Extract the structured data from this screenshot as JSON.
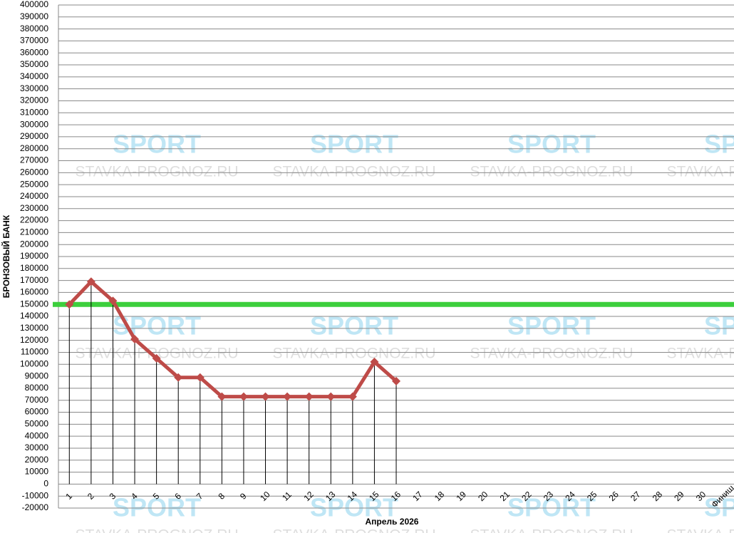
{
  "chart_data": {
    "type": "line",
    "y_label": "БРОНЗОВЫЙ БАНК",
    "x_label": "Апрель 2026",
    "watermark": [
      "SPORT",
      "STAVKA-PROGNOZ.RU"
    ],
    "categories": [
      "1",
      "2",
      "3",
      "4",
      "5",
      "6",
      "7",
      "8",
      "9",
      "10",
      "11",
      "12",
      "13",
      "14",
      "15",
      "16",
      "17",
      "18",
      "19",
      "20",
      "21",
      "22",
      "23",
      "24",
      "25",
      "26",
      "27",
      "28",
      "29",
      "30",
      "Финиш"
    ],
    "series": [
      {
        "color": "#be4b48",
        "values": [
          150000,
          169000,
          153000,
          121000,
          105000,
          89000,
          89000,
          73000,
          73000,
          73000,
          73000,
          73000,
          73000,
          73000,
          102000,
          86000,
          null,
          null,
          null,
          null,
          null,
          null,
          null,
          null,
          null,
          null,
          null,
          null,
          null,
          null,
          null
        ]
      }
    ],
    "hline": {
      "value": 150000,
      "color": "#3ccf3c"
    },
    "droplines": true,
    "grid": true,
    "ylim": [
      -20000,
      400000
    ],
    "yticks": [
      -20000,
      -10000,
      0,
      10000,
      20000,
      30000,
      40000,
      50000,
      60000,
      70000,
      80000,
      90000,
      100000,
      110000,
      120000,
      130000,
      140000,
      150000,
      160000,
      170000,
      180000,
      190000,
      200000,
      210000,
      220000,
      230000,
      240000,
      250000,
      260000,
      270000,
      280000,
      290000,
      300000,
      310000,
      320000,
      330000,
      340000,
      350000,
      360000,
      370000,
      380000,
      390000,
      400000
    ]
  }
}
